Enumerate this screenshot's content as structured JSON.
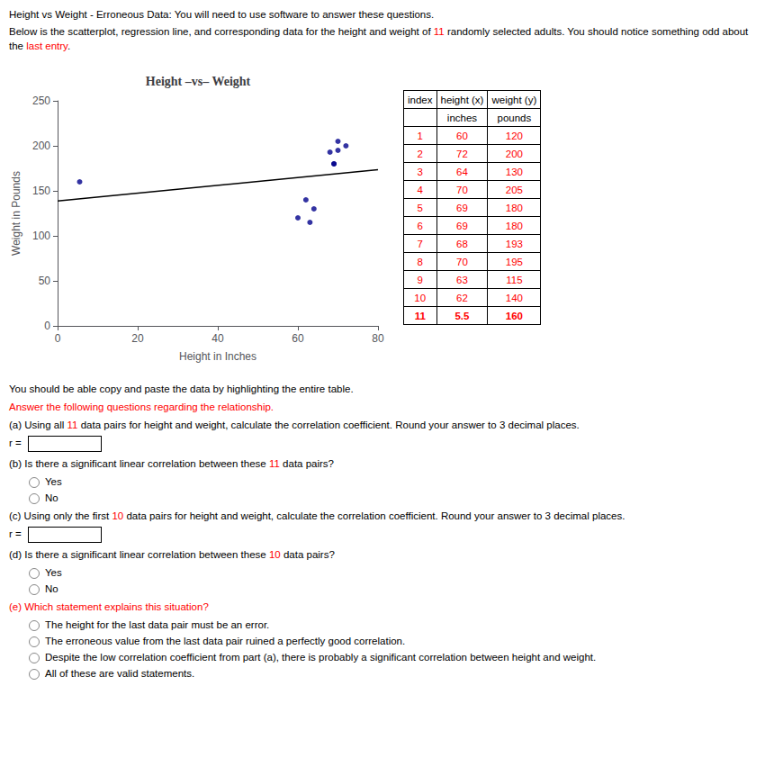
{
  "chart_data": {
    "type": "scatter",
    "title": "Height –vs– Weight",
    "xlabel": "Height in Inches",
    "ylabel": "Weight in Pounds",
    "series": [
      {
        "type": "scatter",
        "color": "#00008B",
        "x": [
          60,
          72,
          64,
          70,
          69,
          69,
          68,
          70,
          63,
          62,
          5.5
        ],
        "values": [
          120,
          200,
          130,
          205,
          180,
          180,
          193,
          195,
          115,
          140,
          160
        ]
      },
      {
        "type": "line",
        "color": "#000000",
        "x": [
          0,
          80
        ],
        "values": [
          138.7361,
          173.4606
        ]
      }
    ],
    "xlim": [
      0,
      80
    ],
    "ylim": [
      0,
      250
    ],
    "xticks": [
      0,
      20,
      40,
      60,
      80
    ],
    "yticks": [
      0,
      50,
      100,
      150,
      200,
      250
    ],
    "grid": false,
    "table": {
      "header": [
        [
          "index",
          "height (x)",
          "weight (y)"
        ],
        [
          "",
          "inches",
          "pounds"
        ]
      ],
      "rows": [
        [
          "1",
          "60",
          "120"
        ],
        [
          "2",
          "72",
          "200"
        ],
        [
          "3",
          "64",
          "130"
        ],
        [
          "4",
          "70",
          "205"
        ],
        [
          "5",
          "69",
          "180"
        ],
        [
          "6",
          "69",
          "180"
        ],
        [
          "7",
          "68",
          "193"
        ],
        [
          "8",
          "70",
          "195"
        ],
        [
          "9",
          "63",
          "115"
        ],
        [
          "10",
          "62",
          "140"
        ],
        [
          "11",
          "5.5",
          "160"
        ]
      ],
      "color": "#FF0000"
    },
    "subtitle": [
      {
        "segments": [
          {
            "text": "Height vs Weight - Erroneous Data:"
          },
          {
            "text": " You will need to use software to answer these questions."
          }
        ]
      },
      {
        "segments": [
          {
            "text": "Below is the scatterplot, regression line, and corresponding data for the height and weight of "
          },
          {
            "text": "11",
            "color": "#FF0000"
          },
          {
            "text": " randomly selected adults. You should notice something odd about the "
          },
          {
            "text": "last entry",
            "color": "#FF0000"
          },
          {
            "text": "."
          }
        ]
      }
    ],
    "annotations": [
      {
        "segments": [
          {
            "text": "You should be able copy and paste the data by highlighting the "
          },
          {
            "text": "entire table"
          },
          {
            "text": "."
          }
        ]
      },
      {
        "segments": [
          {
            "text": "Answer the following questions regarding the relationship.",
            "color": "#FF0000"
          }
        ]
      },
      {
        "segments": [
          {
            "text": "(a) Using all "
          },
          {
            "text": "11",
            "color": "#FF0000"
          },
          {
            "text": " data pairs for height and weight, calculate the correlation coefficient. "
          },
          {
            "text": "Round your answer to 3 decimal places."
          }
        ]
      },
      {
        "prompt": "r = "
      },
      {
        "segments": [
          {
            "text": "(b) Is there a significant linear correlation between these "
          },
          {
            "text": "11",
            "color": "#FF0000"
          },
          {
            "text": " data pairs?"
          }
        ]
      },
      {
        "choice": "Yes"
      },
      {
        "choice": "No"
      },
      {
        "segments": [
          {
            "text": "(c) Using only the first "
          },
          {
            "text": "10",
            "color": "#FF0000"
          },
          {
            "text": " data pairs for height and weight, calculate the correlation coefficient. "
          },
          {
            "text": "Round your answer to 3 decimal places."
          }
        ]
      },
      {
        "prompt": "r = "
      },
      {
        "segments": [
          {
            "text": "(d) Is there a significant linear correlation between these "
          },
          {
            "text": "10",
            "color": "#FF0000"
          },
          {
            "text": " data pairs?"
          }
        ]
      },
      {
        "choice": "Yes"
      },
      {
        "choice": "No"
      },
      {
        "segments": [
          {
            "text": "(e) Which statement explains this situation?",
            "color": "#FF0000"
          }
        ]
      },
      {
        "choice": "The height for the last data pair must be an error."
      },
      {
        "choice": "The erroneous value from the last data pair ruined a perfectly good correlation."
      },
      {
        "choice": "Despite the low correlation coefficient from part (a), there is probably a significant correlation between height and weight."
      },
      {
        "choice": "All of these are valid statements."
      }
    ]
  }
}
